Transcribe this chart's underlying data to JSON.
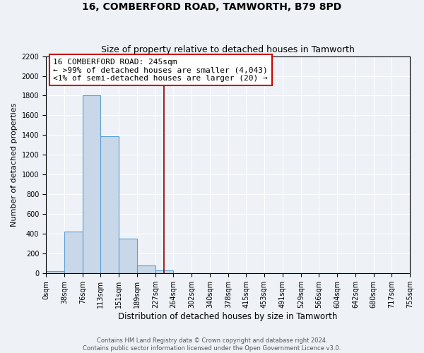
{
  "title": "16, COMBERFORD ROAD, TAMWORTH, B79 8PD",
  "subtitle": "Size of property relative to detached houses in Tamworth",
  "xlabel": "Distribution of detached houses by size in Tamworth",
  "ylabel": "Number of detached properties",
  "bin_edges": [
    0,
    38,
    76,
    113,
    151,
    189,
    227,
    264,
    302,
    340,
    378,
    415,
    453,
    491,
    529,
    566,
    604,
    642,
    680,
    717,
    755
  ],
  "bar_heights": [
    20,
    420,
    1800,
    1390,
    350,
    80,
    30,
    5,
    5,
    5,
    5,
    5,
    5,
    5,
    5,
    5,
    5,
    5,
    5,
    5
  ],
  "bar_color": "#c8d8e8",
  "bar_edgecolor": "#5a9fd4",
  "property_line_x": 245,
  "property_line_color": "#8b0000",
  "annotation_text_line1": "16 COMBERFORD ROAD: 245sqm",
  "annotation_text_line2": "← >99% of detached houses are smaller (4,043)",
  "annotation_text_line3": "<1% of semi-detached houses are larger (20) →",
  "annotation_box_color": "#ffffff",
  "annotation_box_edgecolor": "#cc0000",
  "ylim": [
    0,
    2200
  ],
  "yticks": [
    0,
    200,
    400,
    600,
    800,
    1000,
    1200,
    1400,
    1600,
    1800,
    2000,
    2200
  ],
  "tick_labels": [
    "0sqm",
    "38sqm",
    "76sqm",
    "113sqm",
    "151sqm",
    "189sqm",
    "227sqm",
    "264sqm",
    "302sqm",
    "340sqm",
    "378sqm",
    "415sqm",
    "453sqm",
    "491sqm",
    "529sqm",
    "566sqm",
    "604sqm",
    "642sqm",
    "680sqm",
    "717sqm",
    "755sqm"
  ],
  "footer_text": "Contains HM Land Registry data © Crown copyright and database right 2024.\nContains public sector information licensed under the Open Government Licence v3.0.",
  "bg_color": "#eef2f7",
  "grid_color": "#ffffff",
  "title_fontsize": 10,
  "subtitle_fontsize": 9,
  "ylabel_fontsize": 8,
  "xlabel_fontsize": 8.5,
  "tick_fontsize": 7,
  "annotation_fontsize": 8,
  "footer_fontsize": 6
}
